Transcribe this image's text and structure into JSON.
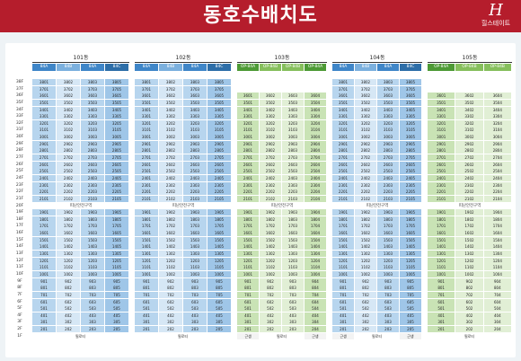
{
  "header": {
    "title": "동호수배치도",
    "brand": "힐스테이트"
  },
  "floors_high": [
    "38F",
    "37F",
    "36F",
    "35F",
    "34F",
    "33F",
    "32F",
    "31F",
    "30F",
    "29F",
    "28F",
    "27F",
    "26F",
    "25F",
    "24F",
    "23F",
    "22F",
    "21F"
  ],
  "floors_low": [
    "19F",
    "18F",
    "17F",
    "16F",
    "15F",
    "14F",
    "13F",
    "12F",
    "11F",
    "10F",
    "9F",
    "8F",
    "7F",
    "6F",
    "5F",
    "4F",
    "3F",
    "2F",
    "1F"
  ],
  "refuge_floor": "20F",
  "refuge_label": "피난안전구역",
  "buildings": [
    {
      "name": "101동",
      "types": [
        "84A",
        "84B",
        "84A",
        "84C"
      ],
      "shades": [
        "t84a",
        "t84b",
        "t84a",
        "t84c"
      ],
      "units": [
        "01",
        "02",
        "03",
        "05"
      ],
      "top": 38,
      "first": "필로티",
      "first_label_units": "01|02|03|05"
    },
    {
      "name": "102동",
      "types": [
        "84A",
        "84B",
        "84A",
        "84C"
      ],
      "shades": [
        "t84a",
        "t84b",
        "t84a",
        "t84c"
      ],
      "units": [
        "01",
        "02",
        "03",
        "05"
      ],
      "top": 38,
      "first": "필로티"
    },
    {
      "name": "103동",
      "types": [
        "OP-84A",
        "OP-84B",
        "OP-84B",
        "OP-84A"
      ],
      "shades": [
        "op",
        "op2",
        "op2",
        "op"
      ],
      "units": [
        "01",
        "02",
        "03",
        "04"
      ],
      "top": 36,
      "first": "필로티",
      "side": "근생"
    },
    {
      "name": "104동",
      "types": [
        "84A",
        "84B",
        "84A",
        "84C"
      ],
      "shades": [
        "t84a",
        "t84b",
        "t84a",
        "t84c"
      ],
      "units": [
        "01",
        "02",
        "03",
        "05"
      ],
      "top": 38,
      "first": "필로티",
      "side": "근생"
    },
    {
      "name": "105동",
      "types": [
        "OP-84A",
        "OP-84B",
        "OP-84B"
      ],
      "shades": [
        "op",
        "op2",
        "op2"
      ],
      "units": [
        "01",
        "02",
        "04"
      ],
      "top": 36,
      "first": "필로티"
    }
  ]
}
